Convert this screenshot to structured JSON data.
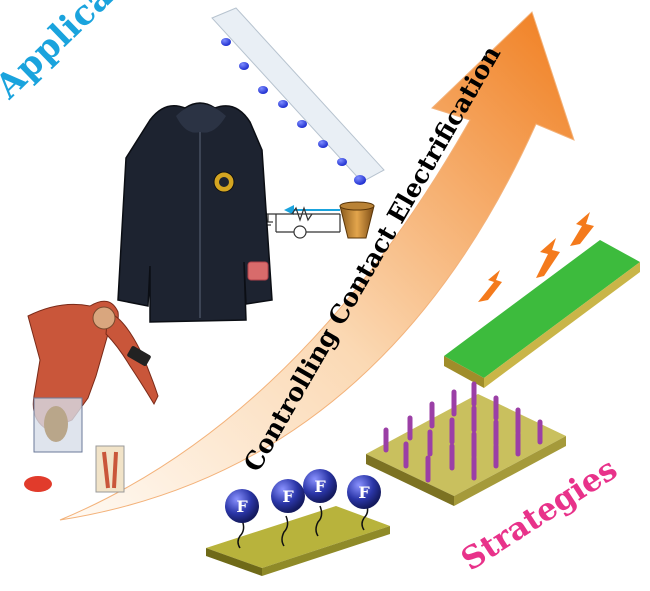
{
  "labels": {
    "applications": "Applications",
    "strategies": "Strategies",
    "arrow_title": "Controlling Contact Electrification"
  },
  "fluorine_symbol": "F",
  "colors": {
    "applications": "#1aa3dd",
    "strategies": "#e8328a",
    "arrow_light": "#fdf0e2",
    "arrow_dark": "#f07d1e",
    "green_surface": "#3dbb3d",
    "pillar": "#9b3fa6",
    "substrate": "#c9c05e",
    "fluorine_sphere": "#2b36a8",
    "spark": "#f47a1c",
    "droplet": "#1f2fcf",
    "jacket": "#1d2330"
  },
  "icons": [
    "curved-arrow",
    "jacket",
    "droplet-slide",
    "circuit",
    "cup",
    "spark-icon",
    "muscle-figure",
    "pillar-array",
    "fluorine-molecule"
  ]
}
